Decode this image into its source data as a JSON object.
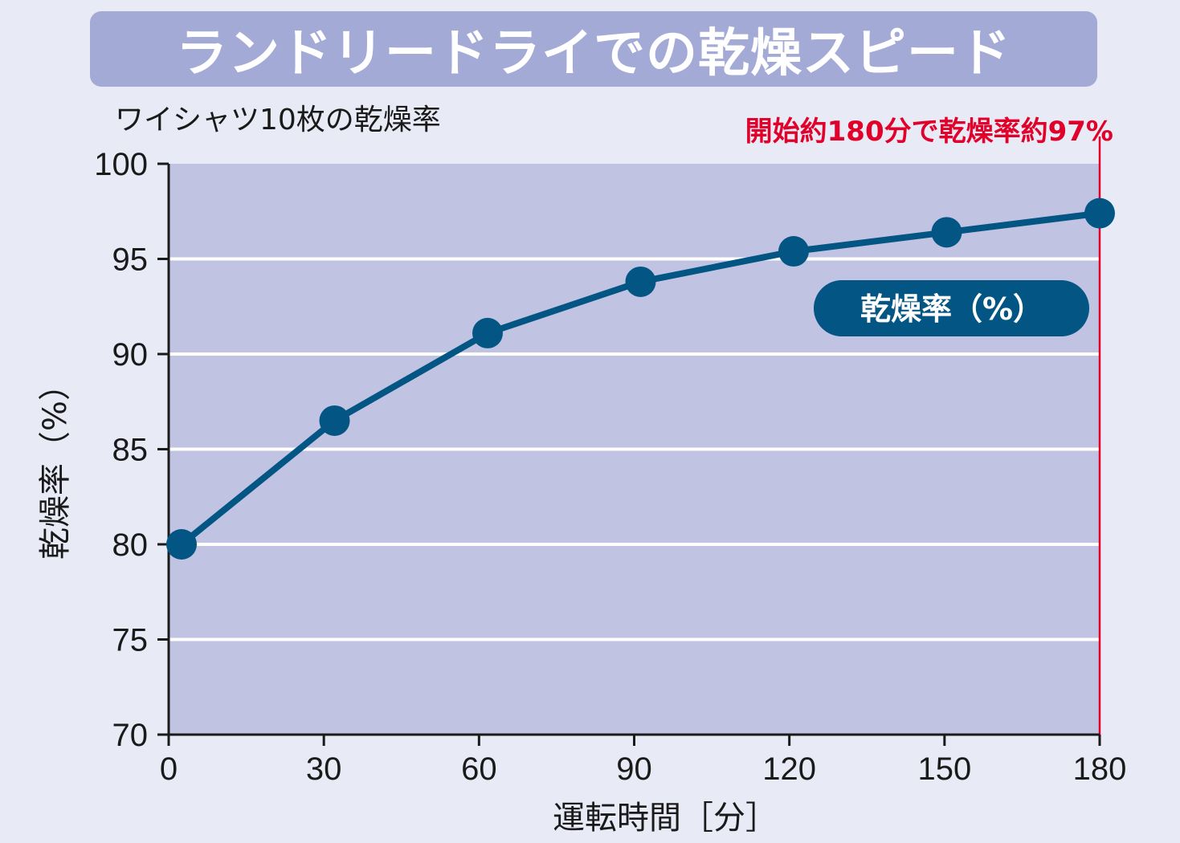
{
  "title": "ランドリードライでの乾燥スピード",
  "subtitle": "ワイシャツ10枚の乾燥率",
  "annotation": "開始約180分で乾燥率約97%",
  "colors": {
    "background": "#e8eaf6",
    "banner": "#a4aad6",
    "plot_area": "#c0c3e2",
    "series": "#035583",
    "annotation": "#e1002a"
  },
  "chart_data": {
    "type": "line",
    "x": [
      0,
      30,
      60,
      90,
      120,
      150,
      180
    ],
    "series": [
      {
        "name": "乾燥率（%）",
        "values": [
          80.0,
          86.5,
          91.1,
          93.8,
          95.4,
          96.4,
          97.4
        ]
      }
    ],
    "xlabel": "運転時間［分］",
    "ylabel": "乾燥率（%）",
    "xlim": [
      0,
      180
    ],
    "ylim": [
      70,
      100
    ],
    "x_ticks": [
      "0",
      "30",
      "60",
      "90",
      "120",
      "150",
      "180"
    ],
    "y_ticks": [
      "100",
      "95",
      "90",
      "85",
      "80",
      "75",
      "70"
    ],
    "grid": true,
    "legend": "right",
    "highlight_x": 180
  }
}
